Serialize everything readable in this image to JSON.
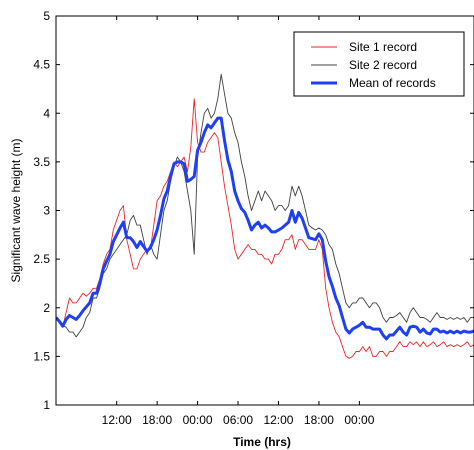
{
  "chart_data": {
    "type": "line",
    "xlabel": "Time (hrs)",
    "ylabel": "Significant wave height (m)",
    "ylim": [
      1,
      5
    ],
    "xlim": [
      0,
      62
    ],
    "x_tick_positions": [
      9,
      15,
      21,
      27,
      33,
      39,
      45
    ],
    "x_tick_labels": [
      "12:00",
      "18:00",
      "00:00",
      "06:00",
      "12:00",
      "18:00",
      "00:00"
    ],
    "y_ticks": [
      1,
      1.5,
      2,
      2.5,
      3,
      3.5,
      4,
      4.5,
      5
    ],
    "y_tick_labels": [
      "1",
      "1.5",
      "2",
      "2.5",
      "3",
      "3.5",
      "4",
      "4.5",
      "5"
    ],
    "legend_position": "top-right",
    "grid": false,
    "series": [
      {
        "name": "Site 1 record",
        "color": "#e8262a",
        "x": [
          0,
          0.5,
          1,
          1.5,
          2,
          2.5,
          3,
          3.5,
          4,
          4.5,
          5,
          5.5,
          6,
          6.5,
          7,
          7.5,
          8,
          8.5,
          9,
          9.5,
          10,
          10.5,
          11,
          11.5,
          12,
          12.5,
          13,
          13.5,
          14,
          14.5,
          15,
          15.5,
          16,
          16.5,
          17,
          17.5,
          18,
          18.5,
          19,
          19.5,
          20,
          20.5,
          21,
          21.5,
          22,
          22.5,
          23,
          23.5,
          24,
          24.5,
          25,
          25.5,
          26,
          26.5,
          27,
          27.5,
          28,
          28.5,
          29,
          29.5,
          30,
          30.5,
          31,
          31.5,
          32,
          32.5,
          33,
          33.5,
          34,
          34.5,
          35,
          35.5,
          36,
          36.5,
          37,
          37.5,
          38,
          38.5,
          39,
          39.5,
          40,
          40.5,
          41,
          41.5,
          42,
          42.5,
          43,
          43.5,
          44,
          44.5,
          45,
          45.5,
          46,
          46.5,
          47,
          47.5,
          48,
          48.5,
          49,
          49.5,
          50,
          50.5,
          51,
          51.5,
          52,
          52.5,
          53,
          53.5,
          54,
          54.5,
          55,
          55.5,
          56,
          56.5,
          57,
          57.5,
          58,
          58.5,
          59,
          59.5,
          60,
          60.5,
          61,
          61.5,
          62
        ],
        "values": [
          1.9,
          1.87,
          1.8,
          1.95,
          2.1,
          2.05,
          2.05,
          2.1,
          2.15,
          2.12,
          2.15,
          2.2,
          2.2,
          2.3,
          2.45,
          2.55,
          2.6,
          2.8,
          2.9,
          3.0,
          3.05,
          2.7,
          2.55,
          2.4,
          2.4,
          2.5,
          2.55,
          2.6,
          2.6,
          2.85,
          3.1,
          3.15,
          3.25,
          3.3,
          3.4,
          3.5,
          3.45,
          3.5,
          3.55,
          3.4,
          3.65,
          4.15,
          3.7,
          3.6,
          3.6,
          3.7,
          3.75,
          3.8,
          3.75,
          3.5,
          3.25,
          3.05,
          2.85,
          2.6,
          2.5,
          2.55,
          2.6,
          2.65,
          2.6,
          2.6,
          2.55,
          2.55,
          2.5,
          2.5,
          2.45,
          2.55,
          2.55,
          2.6,
          2.7,
          2.7,
          2.75,
          2.6,
          2.7,
          2.7,
          2.65,
          2.6,
          2.6,
          2.6,
          2.7,
          2.6,
          2.2,
          2.0,
          1.85,
          1.75,
          1.7,
          1.6,
          1.5,
          1.48,
          1.5,
          1.55,
          1.55,
          1.6,
          1.55,
          1.6,
          1.5,
          1.5,
          1.55,
          1.55,
          1.5,
          1.55,
          1.55,
          1.6,
          1.65,
          1.6,
          1.6,
          1.65,
          1.62,
          1.65,
          1.6,
          1.65,
          1.6,
          1.62,
          1.65,
          1.6,
          1.62,
          1.65,
          1.6,
          1.62,
          1.6,
          1.62,
          1.6,
          1.62,
          1.65,
          1.6,
          1.62
        ]
      },
      {
        "name": "Site 2 record",
        "color": "#404040",
        "x": [
          0,
          0.5,
          1,
          1.5,
          2,
          2.5,
          3,
          3.5,
          4,
          4.5,
          5,
          5.5,
          6,
          6.5,
          7,
          7.5,
          8,
          8.5,
          9,
          9.5,
          10,
          10.5,
          11,
          11.5,
          12,
          12.5,
          13,
          13.5,
          14,
          14.5,
          15,
          15.5,
          16,
          16.5,
          17,
          17.5,
          18,
          18.5,
          19,
          19.5,
          20,
          20.5,
          21,
          21.5,
          22,
          22.5,
          23,
          23.5,
          24,
          24.5,
          25,
          25.5,
          26,
          26.5,
          27,
          27.5,
          28,
          28.5,
          29,
          29.5,
          30,
          30.5,
          31,
          31.5,
          32,
          32.5,
          33,
          33.5,
          34,
          34.5,
          35,
          35.5,
          36,
          36.5,
          37,
          37.5,
          38,
          38.5,
          39,
          39.5,
          40,
          40.5,
          41,
          41.5,
          42,
          42.5,
          43,
          43.5,
          44,
          44.5,
          45,
          45.5,
          46,
          46.5,
          47,
          47.5,
          48,
          48.5,
          49,
          49.5,
          50,
          50.5,
          51,
          51.5,
          52,
          52.5,
          53,
          53.5,
          54,
          54.5,
          55,
          55.5,
          56,
          56.5,
          57,
          57.5,
          58,
          58.5,
          59,
          59.5,
          60,
          60.5,
          61,
          61.5,
          62
        ],
        "values": [
          1.9,
          1.85,
          1.82,
          1.8,
          1.75,
          1.75,
          1.7,
          1.75,
          1.8,
          1.9,
          1.95,
          2.1,
          2.1,
          2.2,
          2.35,
          2.4,
          2.5,
          2.55,
          2.6,
          2.65,
          2.7,
          2.75,
          2.9,
          2.95,
          2.85,
          2.85,
          2.7,
          2.55,
          2.65,
          2.55,
          2.5,
          2.75,
          3.0,
          3.1,
          3.3,
          3.45,
          3.55,
          3.5,
          3.4,
          3.2,
          3.0,
          2.55,
          3.55,
          3.8,
          4.0,
          4.05,
          3.95,
          4.0,
          4.15,
          4.4,
          4.2,
          4.0,
          3.95,
          3.8,
          3.7,
          3.5,
          3.35,
          3.15,
          3.0,
          3.1,
          3.2,
          3.1,
          3.2,
          3.15,
          3.1,
          3.0,
          3.05,
          3.05,
          3.0,
          3.05,
          3.25,
          3.15,
          3.25,
          3.15,
          3.0,
          2.85,
          2.82,
          2.8,
          2.82,
          2.8,
          2.75,
          2.65,
          2.6,
          2.45,
          2.35,
          2.2,
          2.05,
          2.0,
          2.05,
          2.05,
          2.1,
          2.1,
          2.05,
          2.0,
          2.05,
          2.05,
          2.0,
          1.9,
          1.85,
          1.9,
          1.9,
          1.92,
          1.95,
          1.9,
          1.85,
          1.95,
          2.0,
          1.95,
          1.9,
          1.9,
          1.88,
          1.85,
          1.9,
          1.95,
          1.9,
          1.9,
          1.88,
          1.9,
          1.88,
          1.9,
          1.88,
          1.9,
          1.85,
          1.9,
          1.9
        ]
      },
      {
        "name": "Mean of records",
        "color": "#1f3ff2",
        "x": [
          0,
          0.5,
          1,
          1.5,
          2,
          2.5,
          3,
          3.5,
          4,
          4.5,
          5,
          5.5,
          6,
          6.5,
          7,
          7.5,
          8,
          8.5,
          9,
          9.5,
          10,
          10.5,
          11,
          11.5,
          12,
          12.5,
          13,
          13.5,
          14,
          14.5,
          15,
          15.5,
          16,
          16.5,
          17,
          17.5,
          18,
          18.5,
          19,
          19.5,
          20,
          20.5,
          21,
          21.5,
          22,
          22.5,
          23,
          23.5,
          24,
          24.5,
          25,
          25.5,
          26,
          26.5,
          27,
          27.5,
          28,
          28.5,
          29,
          29.5,
          30,
          30.5,
          31,
          31.5,
          32,
          32.5,
          33,
          33.5,
          34,
          34.5,
          35,
          35.5,
          36,
          36.5,
          37,
          37.5,
          38,
          38.5,
          39,
          39.5,
          40,
          40.5,
          41,
          41.5,
          42,
          42.5,
          43,
          43.5,
          44,
          44.5,
          45,
          45.5,
          46,
          46.5,
          47,
          47.5,
          48,
          48.5,
          49,
          49.5,
          50,
          50.5,
          51,
          51.5,
          52,
          52.5,
          53,
          53.5,
          54,
          54.5,
          55,
          55.5,
          56,
          56.5,
          57,
          57.5,
          58,
          58.5,
          59,
          59.5,
          60,
          60.5,
          61,
          61.5,
          62
        ],
        "values": [
          1.9,
          1.86,
          1.81,
          1.88,
          1.92,
          1.9,
          1.88,
          1.92,
          1.97,
          2.01,
          2.05,
          2.15,
          2.15,
          2.25,
          2.4,
          2.48,
          2.55,
          2.68,
          2.75,
          2.82,
          2.88,
          2.72,
          2.72,
          2.68,
          2.62,
          2.68,
          2.63,
          2.58,
          2.62,
          2.7,
          2.8,
          2.95,
          3.12,
          3.2,
          3.35,
          3.48,
          3.5,
          3.5,
          3.48,
          3.3,
          3.32,
          3.35,
          3.62,
          3.7,
          3.8,
          3.88,
          3.85,
          3.9,
          3.95,
          3.95,
          3.72,
          3.52,
          3.4,
          3.2,
          3.1,
          3.02,
          2.98,
          2.9,
          2.8,
          2.85,
          2.88,
          2.82,
          2.85,
          2.82,
          2.78,
          2.78,
          2.8,
          2.82,
          2.85,
          2.88,
          3.0,
          2.88,
          2.98,
          2.92,
          2.82,
          2.72,
          2.71,
          2.7,
          2.76,
          2.7,
          2.48,
          2.32,
          2.22,
          2.1,
          2.02,
          1.9,
          1.78,
          1.74,
          1.78,
          1.8,
          1.82,
          1.85,
          1.8,
          1.8,
          1.78,
          1.78,
          1.78,
          1.72,
          1.68,
          1.72,
          1.72,
          1.76,
          1.8,
          1.75,
          1.72,
          1.8,
          1.81,
          1.8,
          1.75,
          1.78,
          1.74,
          1.73,
          1.78,
          1.78,
          1.75,
          1.76,
          1.74,
          1.76,
          1.74,
          1.76,
          1.74,
          1.76,
          1.75,
          1.75,
          1.76
        ]
      }
    ]
  }
}
